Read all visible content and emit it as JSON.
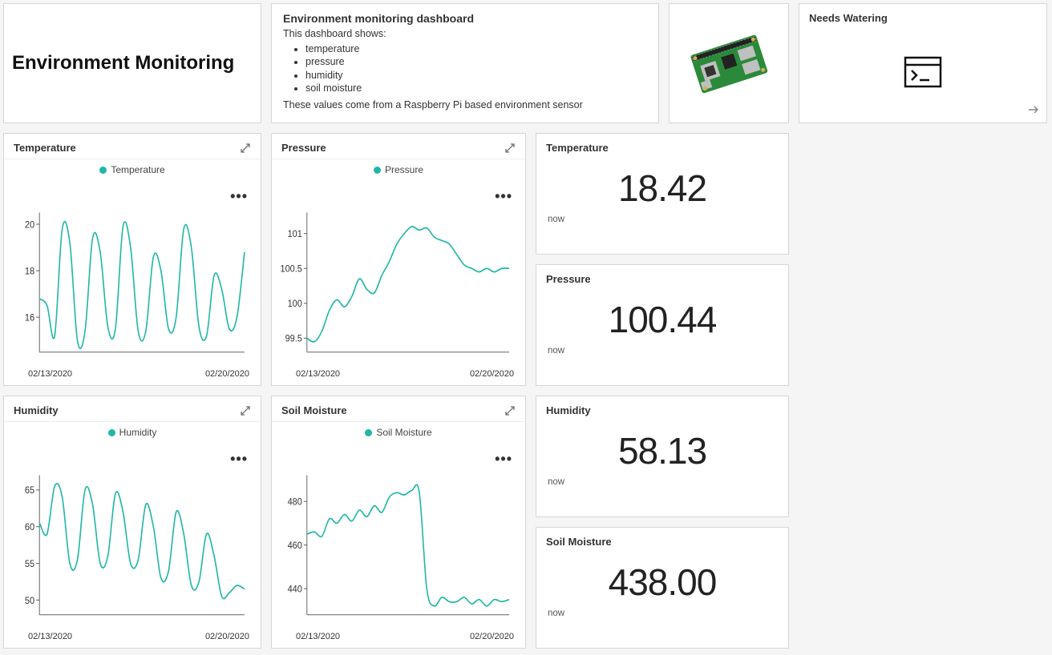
{
  "title": "Environment Monitoring",
  "info": {
    "heading": "Environment monitoring dashboard",
    "subheading": "This dashboard shows:",
    "items": [
      "temperature",
      "pressure",
      "humidity",
      "soil moisture"
    ],
    "footer": "These values come from a Raspberry Pi based environment sensor"
  },
  "needs_watering": {
    "title": "Needs Watering"
  },
  "accent_color": "#1fb7a6",
  "charts": {
    "temperature": {
      "title": "Temperature",
      "legend": "Temperature",
      "x_start": "02/13/2020",
      "x_end": "02/20/2020",
      "y_ticks": [
        16,
        18,
        20
      ],
      "ylim": [
        14.5,
        20.5
      ],
      "line_color": "#1fb7a6",
      "values": [
        16.8,
        16.5,
        15.2,
        19.8,
        19.2,
        15.0,
        15.4,
        19.4,
        18.8,
        15.6,
        15.5,
        19.9,
        19.0,
        15.4,
        15.4,
        18.6,
        18.0,
        15.5,
        16.0,
        19.8,
        19.0,
        15.6,
        15.2,
        17.8,
        17.2,
        15.5,
        16.0,
        18.8
      ]
    },
    "pressure": {
      "title": "Pressure",
      "legend": "Pressure",
      "x_start": "02/13/2020",
      "x_end": "02/20/2020",
      "y_ticks": [
        99.5,
        100,
        100.5,
        101
      ],
      "ylim": [
        99.3,
        101.3
      ],
      "line_color": "#1fb7a6",
      "values": [
        99.5,
        99.45,
        99.6,
        99.9,
        100.05,
        99.95,
        100.1,
        100.35,
        100.2,
        100.15,
        100.4,
        100.6,
        100.85,
        101.0,
        101.1,
        101.05,
        101.08,
        100.95,
        100.9,
        100.85,
        100.7,
        100.55,
        100.5,
        100.45,
        100.5,
        100.45,
        100.5,
        100.5
      ]
    },
    "humidity": {
      "title": "Humidity",
      "legend": "Humidity",
      "x_start": "02/13/2020",
      "x_end": "02/20/2020",
      "y_ticks": [
        50,
        55,
        60,
        65
      ],
      "ylim": [
        48,
        67
      ],
      "line_color": "#1fb7a6",
      "values": [
        60.5,
        59,
        65.5,
        64,
        55,
        55.5,
        65,
        63,
        55,
        56,
        64.5,
        62,
        55,
        55.5,
        63,
        60,
        53,
        54,
        62,
        59,
        52,
        52.5,
        59,
        56,
        50.5,
        51,
        52,
        51.5
      ]
    },
    "soil": {
      "title": "Soil Moisture",
      "legend": "Soil Moisture",
      "x_start": "02/13/2020",
      "x_end": "02/20/2020",
      "y_ticks": [
        440,
        460,
        480
      ],
      "ylim": [
        428,
        492
      ],
      "line_color": "#1fb7a6",
      "values": [
        465,
        466,
        464,
        472,
        470,
        474,
        471,
        476,
        473,
        478,
        475,
        482,
        484,
        483,
        485,
        484,
        440,
        432,
        436,
        434,
        434,
        436,
        433,
        435,
        432,
        435,
        434,
        435
      ]
    }
  },
  "kpis": {
    "temperature": {
      "title": "Temperature",
      "value": "18.42",
      "sub": "now"
    },
    "pressure": {
      "title": "Pressure",
      "value": "100.44",
      "sub": "now"
    },
    "humidity": {
      "title": "Humidity",
      "value": "58.13",
      "sub": "now"
    },
    "soil": {
      "title": "Soil Moisture",
      "value": "438.00",
      "sub": "now"
    }
  }
}
